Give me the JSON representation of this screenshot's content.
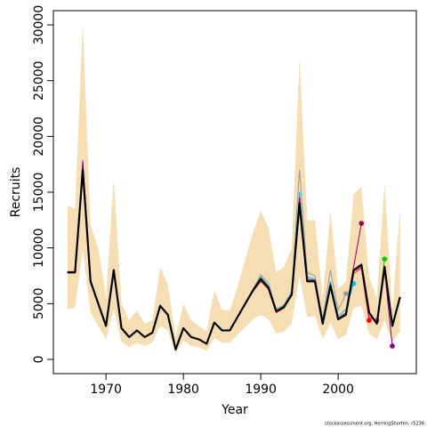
{
  "chart_data": {
    "type": "line",
    "xlabel": "Year",
    "ylabel": "Recruits",
    "footnote": "stockassessment.org, HerringShorten, r5236",
    "xlim": [
      1963.2,
      2010.1
    ],
    "ylim": [
      -1277,
      31280
    ],
    "xticks": [
      1970,
      1980,
      1990,
      2000
    ],
    "yticks": [
      0,
      5000,
      10000,
      15000,
      20000,
      25000,
      30000
    ],
    "end_markers": true,
    "x": [
      1965,
      1966,
      1967,
      1968,
      1969,
      1970,
      1971,
      1972,
      1973,
      1974,
      1975,
      1976,
      1977,
      1978,
      1979,
      1980,
      1981,
      1982,
      1983,
      1984,
      1985,
      1986,
      1987,
      1988,
      1989,
      1990,
      1991,
      1992,
      1993,
      1994,
      1995,
      1996,
      1997,
      1998,
      1999,
      2000,
      2001,
      2002,
      2003,
      2004,
      2005,
      2006,
      2007,
      2008
    ],
    "band": {
      "color": "#f5deb3",
      "upper": [
        13800,
        13500,
        30300,
        12000,
        10000,
        5500,
        16300,
        5000,
        3500,
        4400,
        3200,
        3500,
        8300,
        6700,
        2000,
        5000,
        3500,
        3000,
        2500,
        6200,
        4400,
        4400,
        6500,
        9000,
        11400,
        13300,
        11800,
        7800,
        8300,
        10000,
        27000,
        12500,
        12500,
        5500,
        13300,
        6300,
        7000,
        14800,
        15500,
        7400,
        5500,
        15800,
        4300,
        13800
      ],
      "lower": [
        4500,
        4600,
        9800,
        4200,
        3000,
        1800,
        4500,
        1600,
        1100,
        1500,
        1200,
        1500,
        3000,
        2600,
        500,
        1700,
        1200,
        1100,
        800,
        1900,
        1500,
        1500,
        2200,
        2900,
        3600,
        4000,
        3600,
        2300,
        2500,
        3200,
        7500,
        3800,
        3900,
        1800,
        3300,
        1800,
        2200,
        4600,
        4800,
        2300,
        1800,
        3500,
        1500,
        2500
      ]
    },
    "series": [
      {
        "color": "#999999",
        "values": [
          7900,
          7900,
          17500,
          7100,
          5000,
          3000,
          8100,
          2800,
          2000,
          2600,
          2000,
          2400,
          4900,
          4000,
          900,
          2800,
          2000,
          1800,
          1400,
          3300,
          2600,
          2600,
          3800,
          5000,
          6300,
          7600,
          6800,
          4500,
          4900,
          6100,
          17000,
          7800,
          7500,
          3600,
          8000,
          4400,
          5900,
          null,
          null,
          null,
          null,
          null,
          null,
          null
        ]
      },
      {
        "color": "#00bfff",
        "values": [
          7800,
          7800,
          17200,
          7000,
          5000,
          3000,
          8000,
          2800,
          2000,
          2600,
          2000,
          2400,
          4800,
          4000,
          900,
          2800,
          2000,
          1800,
          1400,
          3300,
          2600,
          2600,
          3800,
          5000,
          6200,
          7400,
          6600,
          4400,
          4800,
          6000,
          15000,
          7400,
          7200,
          3400,
          7000,
          3900,
          4500,
          6800,
          null,
          null,
          null,
          null,
          null,
          null
        ]
      },
      {
        "color": "#a0005a",
        "values": [
          7800,
          7800,
          17000,
          7000,
          5000,
          3000,
          8000,
          2800,
          2000,
          2600,
          2000,
          2400,
          4800,
          4000,
          900,
          2800,
          2000,
          1800,
          1400,
          3300,
          2600,
          2600,
          3800,
          5000,
          6200,
          7300,
          6500,
          4300,
          4700,
          5900,
          14500,
          7200,
          7100,
          3300,
          6800,
          3700,
          4200,
          8300,
          12200,
          null,
          null,
          null,
          null,
          null
        ]
      },
      {
        "color": "#ff0000",
        "values": [
          7800,
          7800,
          17000,
          7000,
          5000,
          3000,
          8000,
          2800,
          2000,
          2600,
          2000,
          2400,
          4800,
          4000,
          900,
          2800,
          2000,
          1800,
          1400,
          3300,
          2600,
          2600,
          3800,
          5000,
          6100,
          7000,
          6300,
          4200,
          4600,
          5800,
          14000,
          7000,
          7000,
          3200,
          6600,
          3600,
          4000,
          7700,
          8200,
          3500,
          null,
          null,
          null,
          null
        ]
      },
      {
        "color": "#ff1493",
        "values": [
          7800,
          7800,
          17000,
          7000,
          5000,
          3000,
          8000,
          2800,
          2000,
          2600,
          2000,
          2400,
          4800,
          4000,
          900,
          2800,
          2000,
          1800,
          1400,
          3300,
          2600,
          2600,
          3800,
          5000,
          6200,
          7200,
          6400,
          4300,
          4700,
          5800,
          14000,
          7000,
          7000,
          3200,
          6600,
          3600,
          4000,
          7900,
          8300,
          3800,
          3500,
          null,
          null,
          null
        ]
      },
      {
        "color": "#00cc00",
        "values": [
          7800,
          7800,
          17000,
          7000,
          5000,
          3000,
          8000,
          2800,
          2000,
          2600,
          2000,
          2400,
          4800,
          4000,
          900,
          2800,
          2000,
          1800,
          1400,
          3300,
          2600,
          2600,
          3800,
          5000,
          6200,
          7200,
          6400,
          4300,
          4700,
          5800,
          14000,
          7000,
          7000,
          3200,
          6600,
          3600,
          4000,
          8000,
          8500,
          4200,
          3300,
          9000,
          null,
          null
        ]
      },
      {
        "color": "#800080",
        "values": [
          7800,
          7800,
          17800,
          7000,
          5000,
          3000,
          8000,
          2800,
          2000,
          2600,
          2000,
          2400,
          4800,
          4000,
          900,
          2800,
          2000,
          1800,
          1400,
          3300,
          2600,
          2600,
          3800,
          5000,
          6200,
          7200,
          6400,
          4300,
          4700,
          5800,
          14000,
          7000,
          7000,
          3200,
          6600,
          3600,
          4000,
          8000,
          8500,
          4200,
          3200,
          8000,
          1200,
          null
        ]
      },
      {
        "color": "#000000",
        "width": 2.2,
        "values": [
          7800,
          7800,
          17000,
          7000,
          5000,
          3000,
          8000,
          2800,
          2000,
          2600,
          2000,
          2400,
          4800,
          4000,
          900,
          2800,
          2000,
          1800,
          1400,
          3300,
          2600,
          2600,
          3800,
          5000,
          6200,
          7200,
          6400,
          4300,
          4700,
          5800,
          14000,
          7000,
          7000,
          3200,
          6600,
          3600,
          4000,
          8000,
          8500,
          4200,
          3200,
          8300,
          3000,
          5600
        ]
      }
    ]
  }
}
